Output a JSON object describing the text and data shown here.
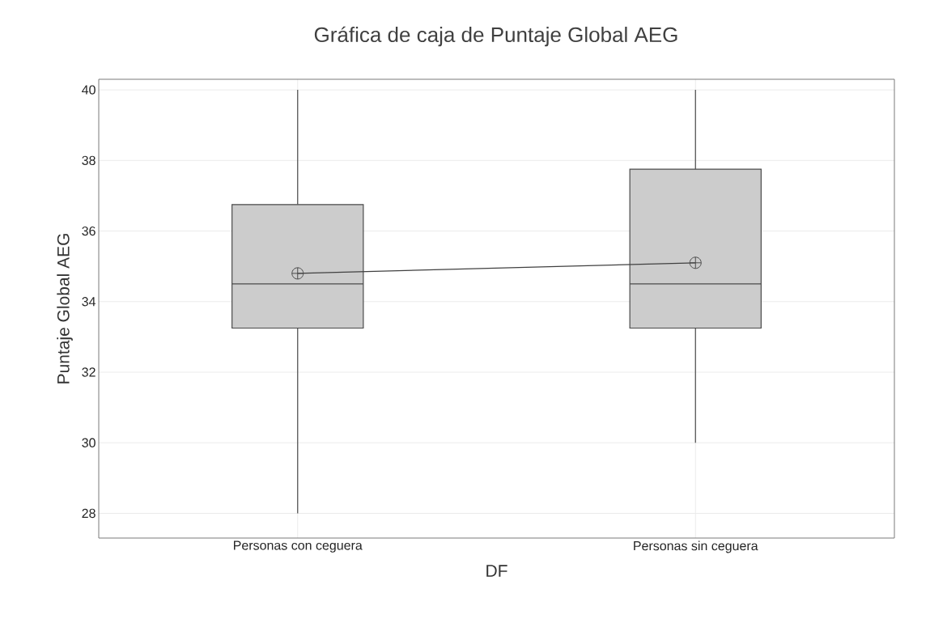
{
  "chart_data": {
    "type": "box",
    "title": "Gráfica de caja de Puntaje Global AEG",
    "xlabel": "DF",
    "ylabel": "Puntaje Global AEG",
    "categories": [
      "Personas con ceguera",
      "Personas sin ceguera"
    ],
    "ylim": [
      27.3,
      40.3
    ],
    "yticks": [
      28,
      30,
      32,
      34,
      36,
      38,
      40
    ],
    "grid": true,
    "series": [
      {
        "color": "#cccccc",
        "boxes": [
          {
            "low": 28,
            "q1": 33.25,
            "median": 34.5,
            "q3": 36.75,
            "high": 40,
            "mean": 34.8
          },
          {
            "low": 30,
            "q1": 33.25,
            "median": 34.5,
            "q3": 37.75,
            "high": 40,
            "mean": 35.1
          }
        ]
      },
      {
        "type": "line",
        "color": "#404040",
        "values": [
          34.8,
          35.1
        ],
        "marker": "none"
      }
    ]
  }
}
